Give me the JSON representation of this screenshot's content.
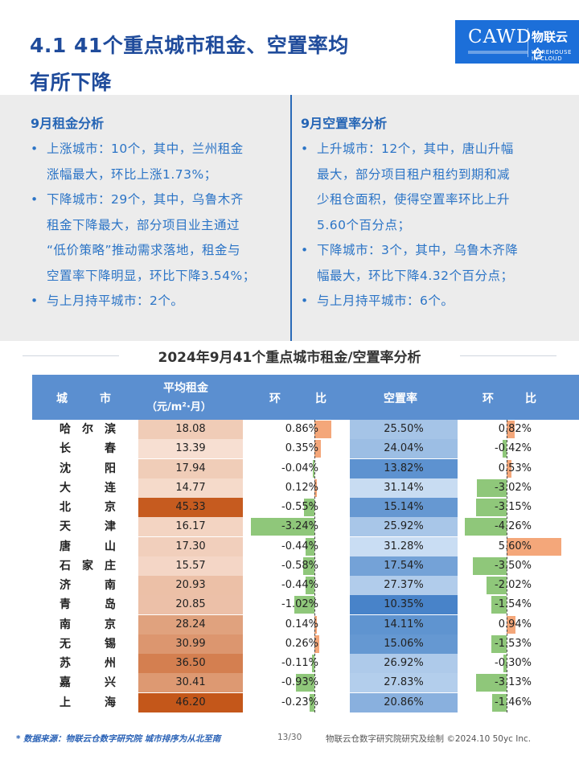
{
  "title": {
    "line1": "4.1 41个重点城市租金、空置率均",
    "line2": "有所下降"
  },
  "logo": {
    "text": "CAWD",
    "brand": "物联云仓",
    "brand_en": "WAREHOUSE IN CLOUD"
  },
  "rent_analysis": {
    "heading": "9月租金分析",
    "bullets": [
      {
        "lines": [
          "上涨城市：10个，其中，兰州租金",
          "涨幅最大，环比上涨1.73%；"
        ]
      },
      {
        "lines": [
          "下降城市：29个，其中，乌鲁木齐",
          "租金下降最大，部分项目业主通过",
          "“低价策略”推动需求落地，租金与",
          "空置率下降明显，环比下降3.54%；"
        ]
      },
      {
        "lines": [
          "与上月持平城市：2个。"
        ]
      }
    ]
  },
  "vacancy_analysis": {
    "heading": "9月空置率分析",
    "bullets": [
      {
        "lines": [
          "上升城市：12个，其中，唐山升幅",
          "最大，部分项目租户租约到期和减",
          "少租仓面积，使得空置率环比上升",
          "5.60个百分点；"
        ]
      },
      {
        "lines": [
          "下降城市：3个，其中，乌鲁木齐降",
          "幅最大，环比下降4.32个百分点；"
        ]
      },
      {
        "lines": [
          "与上月持平城市：6个。"
        ]
      }
    ]
  },
  "table": {
    "title": "2024年9月41个重点城市租金/空置率分析",
    "headers": {
      "city_a": "城",
      "city_b": "市",
      "rent_l1": "平均租金",
      "rent_l2": "（元/m²·月）",
      "chg_a": "环",
      "chg_b": "比",
      "vacancy": "空置率",
      "vchg_a": "环",
      "vchg_b": "比"
    },
    "rows": [
      {
        "city": [
          "哈",
          "尔",
          "滨"
        ],
        "rent": "18.08",
        "rent_v": 18.08,
        "rent_chg": "0.86%",
        "rent_chg_v": 0.86,
        "vacancy": "25.50%",
        "vac_v": 25.5,
        "vac_chg": "0.82%",
        "vac_chg_v": 0.82
      },
      {
        "city": [
          "长",
          "",
          "春"
        ],
        "rent": "13.39",
        "rent_v": 13.39,
        "rent_chg": "0.35%",
        "rent_chg_v": 0.35,
        "vacancy": "24.04%",
        "vac_v": 24.04,
        "vac_chg": "-0.42%",
        "vac_chg_v": -0.42
      },
      {
        "city": [
          "沈",
          "",
          "阳"
        ],
        "rent": "17.94",
        "rent_v": 17.94,
        "rent_chg": "-0.04%",
        "rent_chg_v": -0.04,
        "vacancy": "13.82%",
        "vac_v": 13.82,
        "vac_chg": "0.53%",
        "vac_chg_v": 0.53
      },
      {
        "city": [
          "大",
          "",
          "连"
        ],
        "rent": "14.77",
        "rent_v": 14.77,
        "rent_chg": "0.12%",
        "rent_chg_v": 0.12,
        "vacancy": "31.14%",
        "vac_v": 31.14,
        "vac_chg": "-3.02%",
        "vac_chg_v": -3.02
      },
      {
        "city": [
          "北",
          "",
          "京"
        ],
        "rent": "45.33",
        "rent_v": 45.33,
        "rent_chg": "-0.55%",
        "rent_chg_v": -0.55,
        "vacancy": "15.14%",
        "vac_v": 15.14,
        "vac_chg": "-3.15%",
        "vac_chg_v": -3.15
      },
      {
        "city": [
          "天",
          "",
          "津"
        ],
        "rent": "16.17",
        "rent_v": 16.17,
        "rent_chg": "-3.24%",
        "rent_chg_v": -3.24,
        "vacancy": "25.92%",
        "vac_v": 25.92,
        "vac_chg": "-4.26%",
        "vac_chg_v": -4.26
      },
      {
        "city": [
          "唐",
          "",
          "山"
        ],
        "rent": "17.30",
        "rent_v": 17.3,
        "rent_chg": "-0.44%",
        "rent_chg_v": -0.44,
        "vacancy": "31.28%",
        "vac_v": 31.28,
        "vac_chg": "5.60%",
        "vac_chg_v": 5.6
      },
      {
        "city": [
          "石",
          "家",
          "庄"
        ],
        "rent": "15.57",
        "rent_v": 15.57,
        "rent_chg": "-0.58%",
        "rent_chg_v": -0.58,
        "vacancy": "17.54%",
        "vac_v": 17.54,
        "vac_chg": "-3.50%",
        "vac_chg_v": -3.5
      },
      {
        "city": [
          "济",
          "",
          "南"
        ],
        "rent": "20.93",
        "rent_v": 20.93,
        "rent_chg": "-0.44%",
        "rent_chg_v": -0.44,
        "vacancy": "27.37%",
        "vac_v": 27.37,
        "vac_chg": "-2.02%",
        "vac_chg_v": -2.02
      },
      {
        "city": [
          "青",
          "",
          "岛"
        ],
        "rent": "20.85",
        "rent_v": 20.85,
        "rent_chg": "-1.02%",
        "rent_chg_v": -1.02,
        "vacancy": "10.35%",
        "vac_v": 10.35,
        "vac_chg": "-1.54%",
        "vac_chg_v": -1.54
      },
      {
        "city": [
          "南",
          "",
          "京"
        ],
        "rent": "28.24",
        "rent_v": 28.24,
        "rent_chg": "0.14%",
        "rent_chg_v": 0.14,
        "vacancy": "14.11%",
        "vac_v": 14.11,
        "vac_chg": "0.94%",
        "vac_chg_v": 0.94
      },
      {
        "city": [
          "无",
          "",
          "锡"
        ],
        "rent": "30.99",
        "rent_v": 30.99,
        "rent_chg": "0.26%",
        "rent_chg_v": 0.26,
        "vacancy": "15.06%",
        "vac_v": 15.06,
        "vac_chg": "-1.53%",
        "vac_chg_v": -1.53
      },
      {
        "city": [
          "苏",
          "",
          "州"
        ],
        "rent": "36.50",
        "rent_v": 36.5,
        "rent_chg": "-0.11%",
        "rent_chg_v": -0.11,
        "vacancy": "26.92%",
        "vac_v": 26.92,
        "vac_chg": "-0.30%",
        "vac_chg_v": -0.3
      },
      {
        "city": [
          "嘉",
          "",
          "兴"
        ],
        "rent": "30.41",
        "rent_v": 30.41,
        "rent_chg": "-0.93%",
        "rent_chg_v": -0.93,
        "vacancy": "27.83%",
        "vac_v": 27.83,
        "vac_chg": "-3.13%",
        "vac_chg_v": -3.13
      },
      {
        "city": [
          "上",
          "",
          "海"
        ],
        "rent": "46.20",
        "rent_v": 46.2,
        "rent_chg": "-0.23%",
        "rent_chg_v": -0.23,
        "vacancy": "20.86%",
        "vac_v": 20.86,
        "vac_chg": "-1.46%",
        "vac_chg_v": -1.46
      }
    ]
  },
  "colors": {
    "accent": "#1f4b9b",
    "header": "#5b8fd0",
    "positive": "#f4a77a",
    "negative": "#8fc77a",
    "panel": "#ececec"
  },
  "footer": {
    "source": "* 数据来源：物联云仓数字研究院   城市排序为从北至南",
    "page": "13/30",
    "credit": "物联云仓数字研究院研究及绘制  ©2024.10 50yc Inc."
  }
}
